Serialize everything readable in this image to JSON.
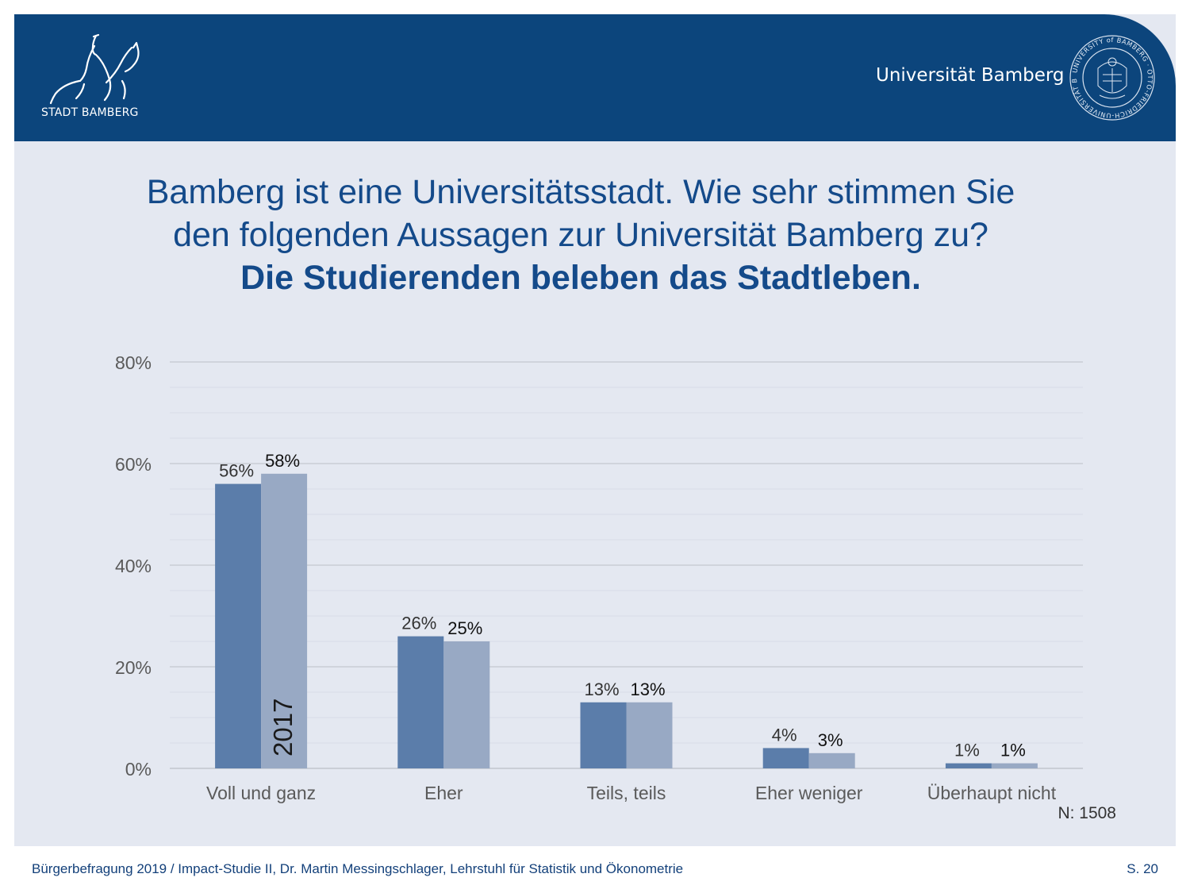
{
  "header": {
    "city_name": "STADT BAMBERG",
    "university_name": "Universität Bamberg",
    "seal_text": "UNIVERSITY of BAMBERG · OTTO-FRIEDRICH-UNIVERSITÄT BAMBERG",
    "background_color": "#0c457c",
    "city_logo_icon": "horse-rider-logo-icon",
    "seal_icon": "university-seal-icon"
  },
  "title": {
    "line1": "Bamberg ist eine Universitätsstadt. Wie sehr stimmen Sie",
    "line2": "den folgenden Aussagen zur Universität Bamberg zu?",
    "line3": "Die Studierenden beleben das Stadtleben."
  },
  "chart_data": {
    "type": "bar",
    "title": "",
    "xlabel": "",
    "ylabel": "",
    "categories": [
      "Voll und ganz",
      "Eher",
      "Teils, teils",
      "Eher weniger",
      "Überhaupt nicht"
    ],
    "series": [
      {
        "values": [
          56,
          26,
          13,
          4,
          1
        ],
        "labels": [
          "56%",
          "26%",
          "13%",
          "4%",
          "1%"
        ],
        "color": "#5b7daa"
      },
      {
        "name": "2017",
        "values": [
          58,
          25,
          13,
          3,
          1
        ],
        "labels": [
          "58%",
          "25%",
          "13%",
          "3%",
          "1%"
        ],
        "color": "#98a9c4"
      }
    ],
    "ylim": [
      0,
      80
    ],
    "yticks": [
      0,
      20,
      40,
      60,
      80
    ],
    "ytick_labels": [
      "0%",
      "20%",
      "40%",
      "60%",
      "80%"
    ],
    "grid": true,
    "legend": "none",
    "note": "N: 1508"
  },
  "footer": {
    "text": "Bürgerbefragung 2019 / Impact-Studie II, Dr. Martin Messingschlager, Lehrstuhl für Statistik und Ökonometrie",
    "page": "S. 20"
  }
}
